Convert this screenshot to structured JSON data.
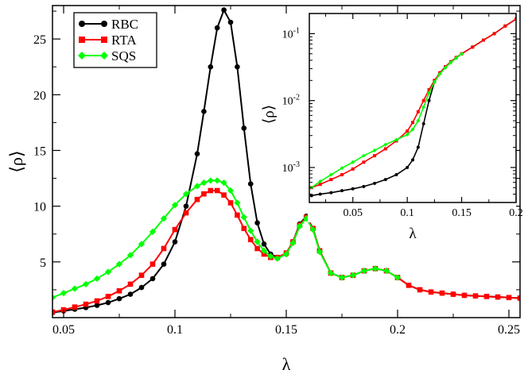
{
  "chart_data": [
    {
      "type": "line",
      "xlabel": "λ",
      "ylabel": "⟨ρ⟩",
      "xlim": [
        0.045,
        0.255
      ],
      "ylim": [
        0,
        28
      ],
      "xticks": [
        0.05,
        0.1,
        0.15,
        0.2,
        0.25
      ],
      "xtick_labels": [
        "0.05",
        "0.1",
        "0.15",
        "0.2",
        "0.25"
      ],
      "yticks": [
        5,
        10,
        15,
        20,
        25
      ],
      "ytick_labels": [
        "5",
        "10",
        "15",
        "20",
        "25"
      ],
      "legend": [
        "RBC",
        "RTA",
        "SQS"
      ],
      "legend_position": "top-left",
      "series": [
        {
          "name": "RBC",
          "color": "#000000",
          "marker": "circle",
          "x": [
            0.045,
            0.05,
            0.055,
            0.06,
            0.065,
            0.07,
            0.075,
            0.08,
            0.085,
            0.09,
            0.095,
            0.1,
            0.105,
            0.11,
            0.113,
            0.116,
            0.119,
            0.122,
            0.125,
            0.128,
            0.131,
            0.134,
            0.137,
            0.14,
            0.143,
            0.146,
            0.15,
            0.153,
            0.156,
            0.159,
            0.162,
            0.165,
            0.17,
            0.175,
            0.18,
            0.185,
            0.19,
            0.195,
            0.2,
            0.205,
            0.21,
            0.215,
            0.22,
            0.225,
            0.23,
            0.235,
            0.24,
            0.245,
            0.25,
            0.255
          ],
          "y": [
            0.45,
            0.6,
            0.75,
            0.9,
            1.1,
            1.35,
            1.7,
            2.1,
            2.7,
            3.5,
            4.8,
            6.8,
            10.0,
            14.7,
            18.5,
            22.5,
            26.0,
            27.6,
            26.5,
            22.5,
            17.0,
            12.0,
            8.5,
            6.6,
            5.7,
            5.4,
            5.7,
            6.8,
            8.4,
            9.1,
            8.0,
            6.0,
            4.0,
            3.6,
            3.8,
            4.2,
            4.4,
            4.2,
            3.6,
            2.9,
            2.5,
            2.3,
            2.2,
            2.1,
            2.0,
            1.95,
            1.9,
            1.85,
            1.8,
            1.75
          ]
        },
        {
          "name": "RTA",
          "color": "#ff0000",
          "marker": "square",
          "x": [
            0.045,
            0.05,
            0.055,
            0.06,
            0.065,
            0.07,
            0.075,
            0.08,
            0.085,
            0.09,
            0.095,
            0.1,
            0.105,
            0.11,
            0.113,
            0.116,
            0.119,
            0.122,
            0.125,
            0.128,
            0.131,
            0.134,
            0.137,
            0.14,
            0.143,
            0.146,
            0.15,
            0.153,
            0.156,
            0.159,
            0.162,
            0.165,
            0.17,
            0.175,
            0.18,
            0.185,
            0.19,
            0.195,
            0.2,
            0.205,
            0.21,
            0.215,
            0.22,
            0.225,
            0.23,
            0.235,
            0.24,
            0.245,
            0.25,
            0.255
          ],
          "y": [
            0.5,
            0.7,
            0.95,
            1.2,
            1.5,
            1.9,
            2.4,
            3.0,
            3.8,
            4.8,
            6.2,
            7.9,
            9.4,
            10.6,
            11.1,
            11.4,
            11.4,
            11.0,
            10.3,
            9.2,
            8.0,
            7.0,
            6.2,
            5.7,
            5.4,
            5.4,
            5.8,
            6.8,
            8.3,
            9.0,
            8.0,
            6.0,
            4.0,
            3.6,
            3.8,
            4.2,
            4.4,
            4.2,
            3.6,
            2.9,
            2.5,
            2.3,
            2.2,
            2.1,
            2.0,
            1.95,
            1.9,
            1.85,
            1.8,
            1.75
          ]
        },
        {
          "name": "SQS",
          "color": "#00ff00",
          "marker": "diamond",
          "x": [
            0.045,
            0.05,
            0.055,
            0.06,
            0.065,
            0.07,
            0.075,
            0.08,
            0.085,
            0.09,
            0.095,
            0.1,
            0.105,
            0.11,
            0.113,
            0.116,
            0.119,
            0.122,
            0.125,
            0.128,
            0.131,
            0.134,
            0.137,
            0.14,
            0.143,
            0.146,
            0.15,
            0.153,
            0.156,
            0.159,
            0.162,
            0.165,
            0.17,
            0.175,
            0.18,
            0.185,
            0.19,
            0.195,
            0.2
          ],
          "y": [
            1.8,
            2.2,
            2.6,
            3.0,
            3.5,
            4.1,
            4.8,
            5.6,
            6.6,
            7.7,
            8.9,
            10.1,
            11.1,
            11.8,
            12.1,
            12.3,
            12.3,
            12.1,
            11.4,
            10.3,
            9.0,
            7.8,
            6.8,
            6.0,
            5.5,
            5.3,
            5.7,
            6.7,
            8.2,
            8.9,
            7.9,
            5.9,
            4.0,
            3.6,
            3.8,
            4.2,
            4.4,
            4.2,
            3.6
          ]
        }
      ]
    },
    {
      "type": "line",
      "role": "inset",
      "yscale": "log",
      "xlabel": "λ",
      "ylabel": "⟨ρ⟩",
      "xlim": [
        0.01,
        0.2
      ],
      "ylim": [
        0.0003,
        0.2
      ],
      "xticks": [
        0.05,
        0.1,
        0.15,
        0.2
      ],
      "xtick_labels": [
        "0.05",
        "0.1",
        "0.15",
        "0.2"
      ],
      "ytick_labels": [
        {
          "base": "10",
          "exp": "-3",
          "value": 0.001
        },
        {
          "base": "10",
          "exp": "-2",
          "value": 0.01
        },
        {
          "base": "10",
          "exp": "-1",
          "value": 0.1
        }
      ],
      "series": [
        {
          "name": "RBC",
          "color": "#000000",
          "marker": "circle",
          "x": [
            0.012,
            0.02,
            0.03,
            0.04,
            0.05,
            0.06,
            0.07,
            0.08,
            0.09,
            0.1,
            0.105,
            0.11,
            0.115,
            0.12,
            0.125,
            0.13,
            0.135,
            0.14,
            0.145,
            0.15,
            0.16,
            0.17,
            0.18,
            0.19,
            0.2
          ],
          "y": [
            0.00038,
            0.0004,
            0.00042,
            0.00045,
            0.00048,
            0.00052,
            0.00058,
            0.00066,
            0.00078,
            0.001,
            0.0013,
            0.002,
            0.0045,
            0.01,
            0.019,
            0.026,
            0.032,
            0.038,
            0.044,
            0.05,
            0.063,
            0.08,
            0.1,
            0.13,
            0.165
          ]
        },
        {
          "name": "RTA",
          "color": "#ff0000",
          "marker": "square",
          "x": [
            0.012,
            0.02,
            0.03,
            0.04,
            0.05,
            0.06,
            0.07,
            0.08,
            0.09,
            0.1,
            0.105,
            0.11,
            0.115,
            0.12,
            0.125,
            0.13,
            0.135,
            0.14,
            0.145,
            0.15,
            0.16,
            0.17,
            0.18,
            0.19,
            0.2
          ],
          "y": [
            0.0005,
            0.00056,
            0.00066,
            0.00078,
            0.00095,
            0.0012,
            0.0015,
            0.0019,
            0.0025,
            0.0035,
            0.0047,
            0.0068,
            0.01,
            0.0145,
            0.02,
            0.026,
            0.032,
            0.038,
            0.044,
            0.05,
            0.063,
            0.08,
            0.1,
            0.13,
            0.165
          ]
        },
        {
          "name": "SQS",
          "color": "#00ff00",
          "marker": "diamond",
          "x": [
            0.012,
            0.02,
            0.03,
            0.04,
            0.05,
            0.06,
            0.07,
            0.08,
            0.09,
            0.1,
            0.105,
            0.11,
            0.115,
            0.12,
            0.125,
            0.13,
            0.135,
            0.14,
            0.145,
            0.15
          ],
          "y": [
            0.0005,
            0.00062,
            0.00078,
            0.00098,
            0.0012,
            0.0015,
            0.0018,
            0.0022,
            0.0026,
            0.0031,
            0.0037,
            0.005,
            0.008,
            0.013,
            0.019,
            0.025,
            0.031,
            0.037,
            0.043,
            0.05
          ]
        }
      ]
    }
  ]
}
